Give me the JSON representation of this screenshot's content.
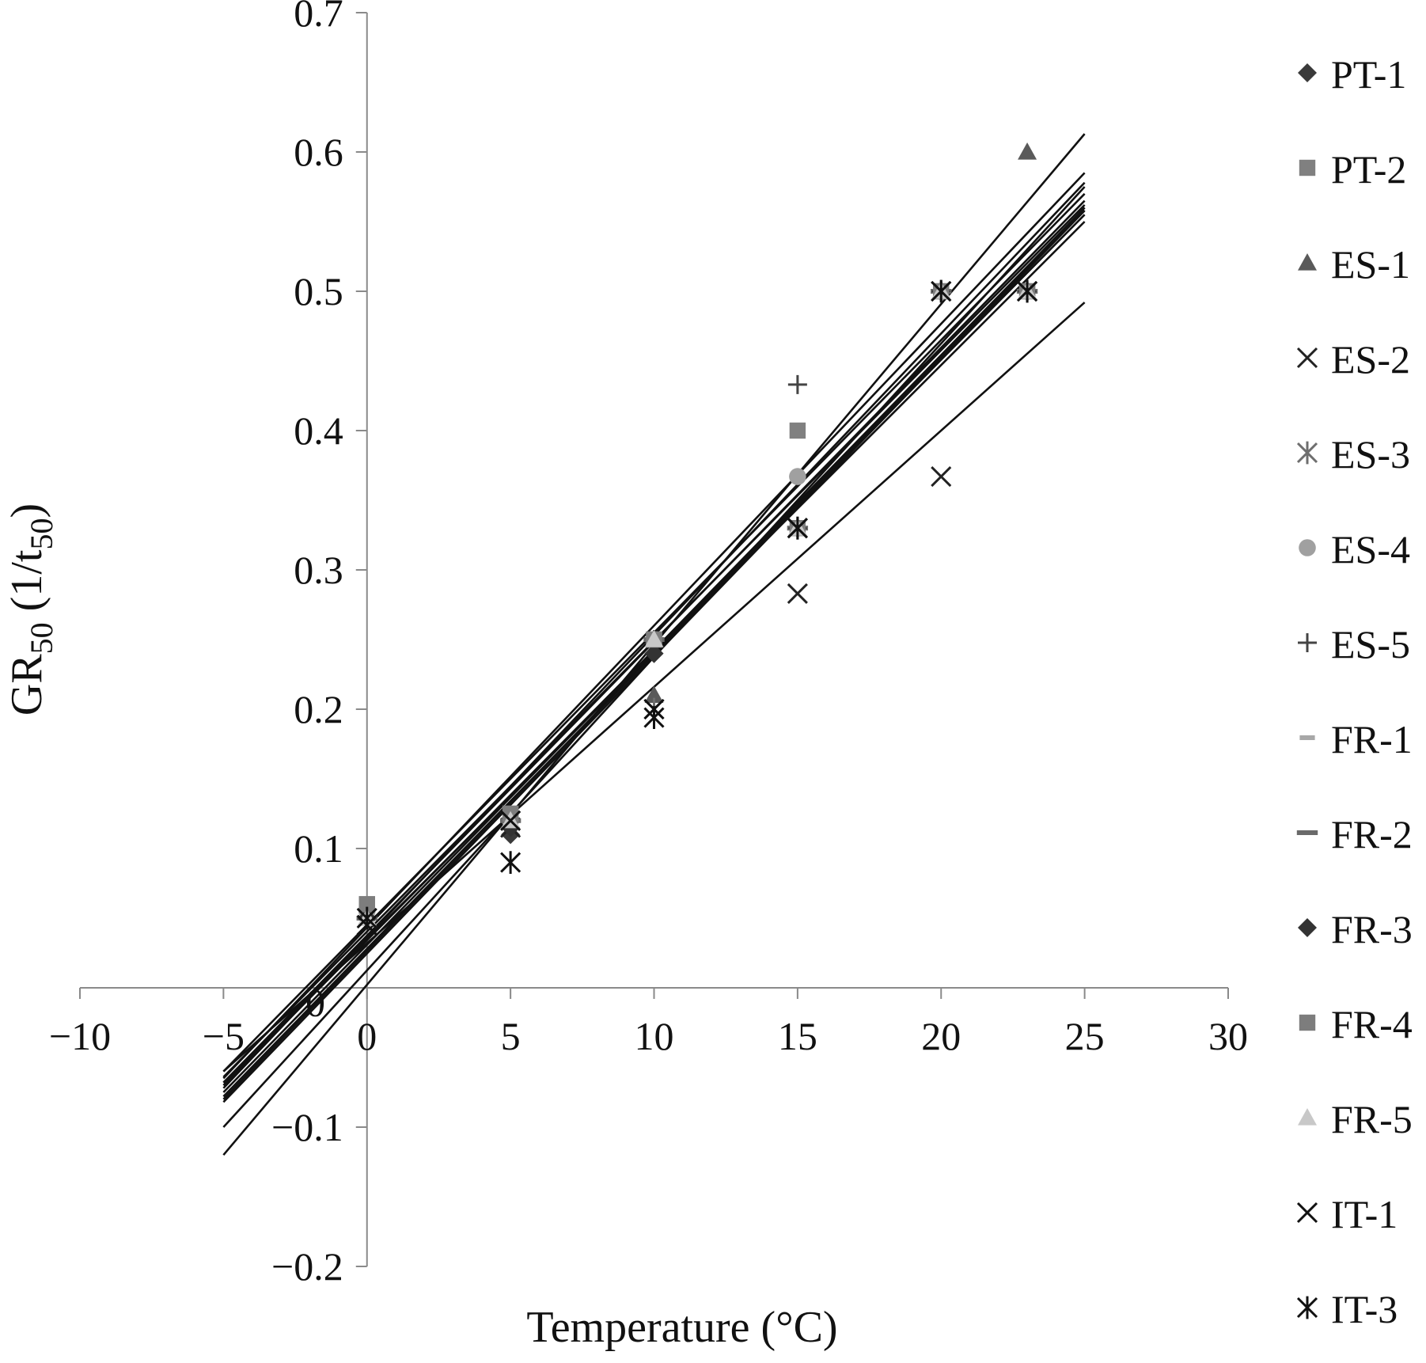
{
  "chart_data": {
    "type": "scatter",
    "title": "",
    "xlabel": "Temperature (°C)",
    "ylabel": {
      "main": "GR",
      "sub": "50",
      "paren_open": " (1/t",
      "paren_sub": "50",
      "paren_close": ")"
    },
    "xlim": [
      -10,
      30
    ],
    "ylim": [
      -0.2,
      0.7
    ],
    "x_ticks": [
      -10,
      -5,
      0,
      5,
      10,
      15,
      20,
      25,
      30
    ],
    "x_tick_labels": [
      "−10",
      "−5",
      "0",
      "5",
      "10",
      "15",
      "20",
      "25",
      "30"
    ],
    "y_ticks": [
      -0.2,
      -0.1,
      0,
      0.1,
      0.2,
      0.3,
      0.4,
      0.5,
      0.6,
      0.7
    ],
    "y_tick_labels": [
      "−0.2",
      "−0.1",
      "0",
      "0.1",
      "0.2",
      "0.3",
      "0.4",
      "0.5",
      "0.6",
      "0.7"
    ],
    "grid": false,
    "legend_position": "right",
    "series": [
      {
        "name": "PT-1",
        "marker": "diamond",
        "color": "#3a3a3a",
        "points": [
          [
            0,
            0.05
          ],
          [
            5,
            0.11
          ],
          [
            10,
            0.24
          ],
          [
            15,
            0.33
          ],
          [
            20,
            0.5
          ],
          [
            23,
            0.5
          ]
        ],
        "trend": [
          [
            -5,
            -0.075
          ],
          [
            25,
            0.56
          ]
        ]
      },
      {
        "name": "PT-2",
        "marker": "square",
        "color": "#808080",
        "points": [
          [
            0,
            0.06
          ],
          [
            5,
            0.125
          ],
          [
            10,
            0.25
          ],
          [
            15,
            0.4
          ],
          [
            20,
            0.5
          ],
          [
            23,
            0.5
          ]
        ],
        "trend": [
          [
            -5,
            -0.065
          ],
          [
            25,
            0.585
          ]
        ]
      },
      {
        "name": "ES-1",
        "marker": "triangle",
        "color": "#5a5a5a",
        "points": [
          [
            0,
            0.05
          ],
          [
            5,
            0.12
          ],
          [
            10,
            0.21
          ],
          [
            15,
            0.33
          ],
          [
            20,
            0.5
          ],
          [
            23,
            0.6
          ]
        ],
        "trend": [
          [
            -5,
            -0.12
          ],
          [
            25,
            0.613
          ]
        ]
      },
      {
        "name": "ES-2",
        "marker": "x",
        "color": "#222222",
        "points": [
          [
            0,
            0.045
          ],
          [
            5,
            0.115
          ],
          [
            10,
            0.2
          ],
          [
            15,
            0.283
          ],
          [
            20,
            0.367
          ],
          [
            23,
            0.5
          ]
        ],
        "trend": [
          [
            -5,
            -0.06
          ],
          [
            25,
            0.492
          ]
        ]
      },
      {
        "name": "ES-3",
        "marker": "asterisk",
        "color": "#6e6e6e",
        "points": [
          [
            0,
            0.05
          ],
          [
            5,
            0.12
          ],
          [
            10,
            0.2
          ],
          [
            15,
            0.33
          ],
          [
            20,
            0.5
          ],
          [
            23,
            0.5
          ]
        ],
        "trend": [
          [
            -5,
            -0.068
          ],
          [
            25,
            0.565
          ]
        ]
      },
      {
        "name": "ES-4",
        "marker": "circle",
        "color": "#a0a0a0",
        "points": [
          [
            0,
            0.055
          ],
          [
            5,
            0.12
          ],
          [
            10,
            0.25
          ],
          [
            15,
            0.367
          ],
          [
            20,
            0.5
          ],
          [
            23,
            0.5
          ]
        ],
        "trend": [
          [
            -5,
            -0.072
          ],
          [
            25,
            0.578
          ]
        ]
      },
      {
        "name": "ES-5",
        "marker": "plus",
        "color": "#444444",
        "points": [
          [
            0,
            0.05
          ],
          [
            5,
            0.12
          ],
          [
            10,
            0.25
          ],
          [
            15,
            0.433
          ],
          [
            20,
            0.5
          ],
          [
            23,
            0.5
          ]
        ],
        "trend": [
          [
            -5,
            -0.1
          ],
          [
            25,
            0.575
          ]
        ]
      },
      {
        "name": "FR-1",
        "marker": "dash",
        "color": "#a8a8a8",
        "points": [
          [
            0,
            0.05
          ],
          [
            5,
            0.12
          ],
          [
            10,
            0.25
          ],
          [
            15,
            0.33
          ],
          [
            20,
            0.5
          ],
          [
            23,
            0.5
          ]
        ],
        "trend": [
          [
            -5,
            -0.078
          ],
          [
            25,
            0.558
          ]
        ]
      },
      {
        "name": "FR-2",
        "marker": "longdash",
        "color": "#6a6a6a",
        "points": [
          [
            0,
            0.05
          ],
          [
            5,
            0.12
          ],
          [
            10,
            0.25
          ],
          [
            15,
            0.33
          ],
          [
            20,
            0.5
          ],
          [
            23,
            0.5
          ]
        ],
        "trend": [
          [
            -5,
            -0.06
          ],
          [
            25,
            0.57
          ]
        ]
      },
      {
        "name": "FR-3",
        "marker": "diamond",
        "color": "#333333",
        "points": [
          [
            0,
            0.05
          ],
          [
            5,
            0.115
          ],
          [
            10,
            0.24
          ],
          [
            15,
            0.33
          ],
          [
            20,
            0.5
          ],
          [
            23,
            0.5
          ]
        ],
        "trend": [
          [
            -5,
            -0.07
          ],
          [
            25,
            0.555
          ]
        ]
      },
      {
        "name": "FR-4",
        "marker": "square",
        "color": "#7d7d7d",
        "points": [
          [
            0,
            0.06
          ],
          [
            5,
            0.125
          ],
          [
            10,
            0.25
          ],
          [
            15,
            0.33
          ],
          [
            20,
            0.5
          ],
          [
            23,
            0.5
          ]
        ],
        "trend": [
          [
            -5,
            -0.064
          ],
          [
            25,
            0.562
          ]
        ]
      },
      {
        "name": "FR-5",
        "marker": "triangle",
        "color": "#c8c8c8",
        "points": [
          [
            0,
            0.05
          ],
          [
            5,
            0.12
          ],
          [
            10,
            0.25
          ],
          [
            15,
            0.33
          ],
          [
            20,
            0.5
          ],
          [
            23,
            0.5
          ]
        ],
        "trend": [
          [
            -5,
            -0.08
          ],
          [
            25,
            0.56
          ]
        ]
      },
      {
        "name": "IT-1",
        "marker": "x",
        "color": "#111111",
        "points": [
          [
            0,
            0.045
          ],
          [
            5,
            0.12
          ],
          [
            10,
            0.2
          ],
          [
            15,
            0.33
          ],
          [
            20,
            0.5
          ],
          [
            23,
            0.5
          ]
        ],
        "trend": [
          [
            -5,
            -0.068
          ],
          [
            25,
            0.55
          ]
        ]
      },
      {
        "name": "IT-3",
        "marker": "asterisk",
        "color": "#111111",
        "points": [
          [
            0,
            0.05
          ],
          [
            5,
            0.09
          ],
          [
            10,
            0.194
          ],
          [
            15,
            0.33
          ],
          [
            20,
            0.5
          ],
          [
            23,
            0.5
          ]
        ],
        "trend": [
          [
            -5,
            -0.082
          ],
          [
            25,
            0.558
          ]
        ]
      }
    ],
    "annotations": [
      {
        "text": "0",
        "x": -1.8,
        "y": -0.01
      }
    ]
  }
}
